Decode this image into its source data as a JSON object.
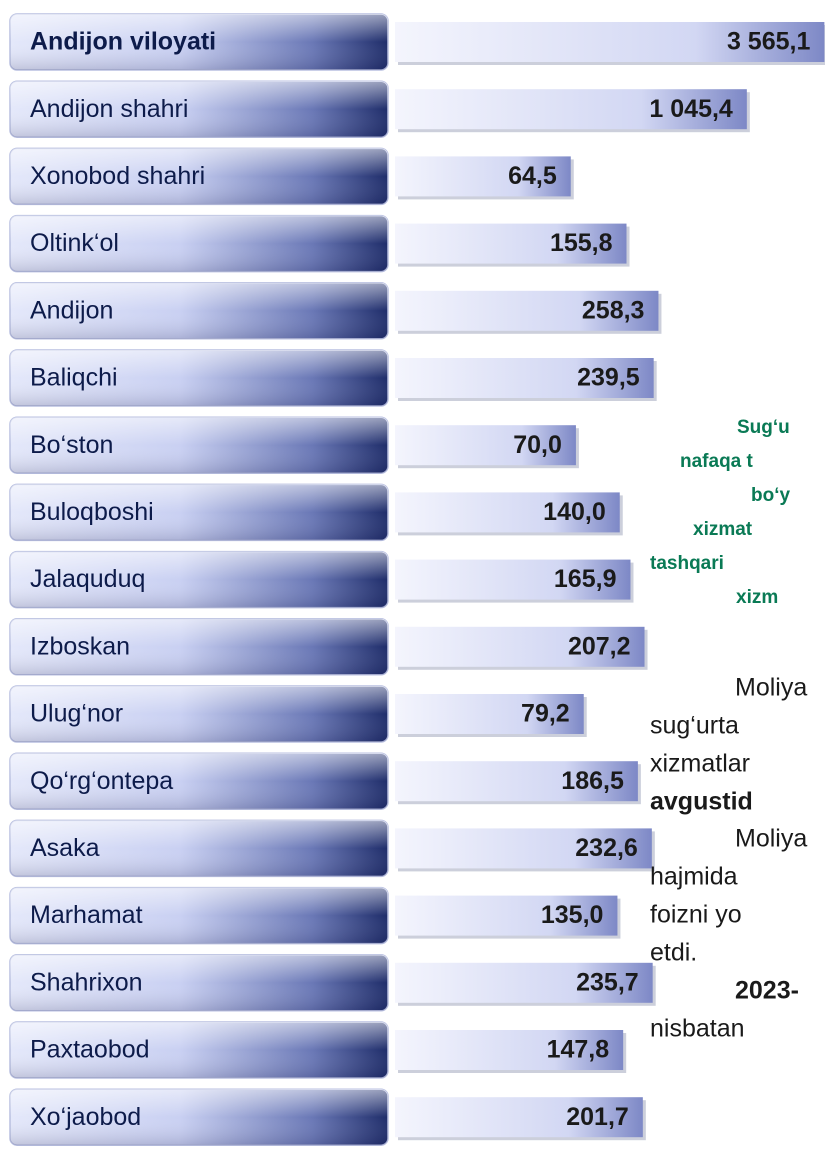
{
  "chart_data": {
    "type": "hbar",
    "log_scale": true,
    "xlim": [
      4,
      3600
    ],
    "categories": [
      "Andijon viloyati",
      "Andijon  shahri",
      "Xonobod shahri",
      "Oltink‘ol",
      "Andijon",
      "Baliqchi",
      "Bo‘ston",
      "Buloqboshi",
      "Jalaquduq",
      "Izboskan",
      "Ulug‘nor",
      "Qo‘rg‘ontepa",
      "Asaka",
      "Marhamat",
      "Shahrixon",
      "Paxtaobod",
      "Xo‘jaobod"
    ],
    "values": [
      3565.1,
      1045.4,
      64.5,
      155.8,
      258.3,
      239.5,
      70.0,
      140.0,
      165.9,
      207.2,
      79.2,
      186.5,
      232.6,
      135.0,
      235.7,
      147.8,
      201.7
    ],
    "value_labels": [
      "3 565,1",
      "1 045,4",
      "64,5",
      "155,8",
      "258,3",
      "239,5",
      "70,0",
      "140,0",
      "165,9",
      "207,2",
      "79,2",
      "186,5",
      "232,6",
      "135,0",
      "235,7",
      "147,8",
      "201,7"
    ],
    "highlight_text": [
      "Sug‘u",
      "nafaqa t",
      "bo‘y",
      "xizmat",
      "tashqari",
      "xizm"
    ],
    "body_text": [
      "Moliya",
      "sug‘urta",
      "xizmatlar",
      "avgustid",
      "Moliya",
      "hajmida",
      "foizni  yo",
      "etdi.",
      "2023-",
      "nisbatan"
    ]
  }
}
